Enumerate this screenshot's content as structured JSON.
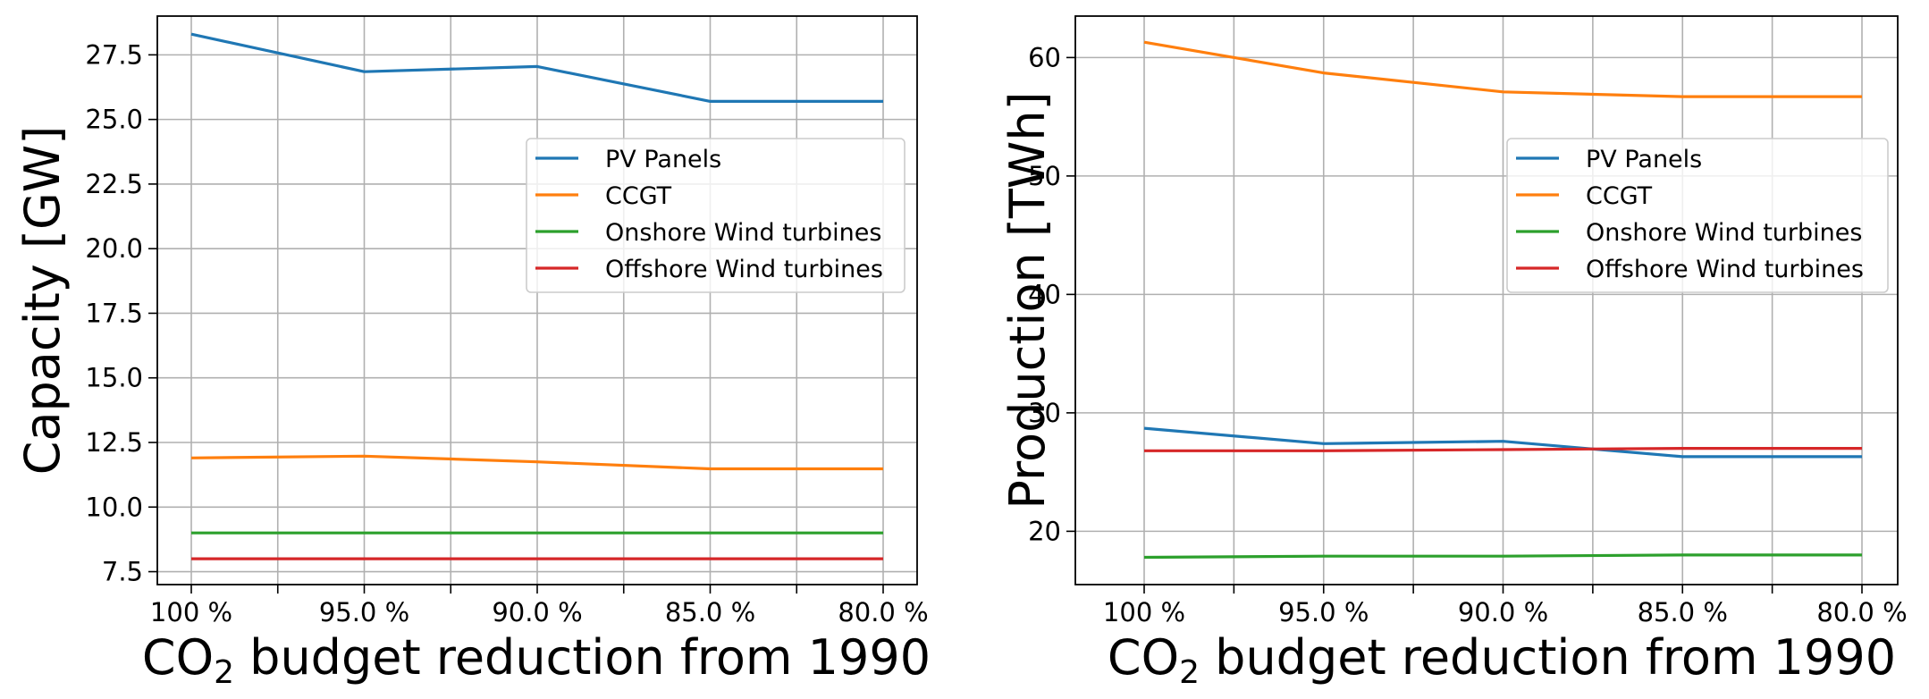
{
  "chart_data": [
    {
      "type": "line",
      "ylabel": "Capacity [GW]",
      "xlabel_main": "CO",
      "xlabel_sub": "2",
      "xlabel_rest": " budget reduction from 1990",
      "categories": [
        "100 %",
        "95.0 %",
        "90.0 %",
        "85.0 %",
        "80.0 %"
      ],
      "ylim": [
        7.0,
        29.0
      ],
      "yticks": [
        7.5,
        10.0,
        12.5,
        15.0,
        17.5,
        20.0,
        22.5,
        25.0,
        27.5
      ],
      "ytick_labels": [
        "7.5",
        "10.0",
        "12.5",
        "15.0",
        "17.5",
        "20.0",
        "22.5",
        "25.0",
        "27.5"
      ],
      "grid": true,
      "legend_position": "center-right",
      "series": [
        {
          "name": "PV Panels",
          "color": "#1f77b4",
          "values": [
            28.3,
            26.85,
            27.05,
            25.7,
            25.7
          ]
        },
        {
          "name": "CCGT",
          "color": "#ff7f0e",
          "values": [
            11.9,
            11.97,
            11.75,
            11.48,
            11.48
          ]
        },
        {
          "name": "Onshore Wind turbines",
          "color": "#2ca02c",
          "values": [
            9.0,
            9.0,
            9.0,
            9.0,
            9.0
          ]
        },
        {
          "name": "Offshore Wind turbines",
          "color": "#d62728",
          "values": [
            8.0,
            8.0,
            8.0,
            8.0,
            8.0
          ]
        }
      ]
    },
    {
      "type": "line",
      "ylabel": "Production [TWh]",
      "xlabel_main": "CO",
      "xlabel_sub": "2",
      "xlabel_rest": " budget reduction from 1990",
      "categories": [
        "100 %",
        "95.0 %",
        "90.0 %",
        "85.0 %",
        "80.0 %"
      ],
      "ylim": [
        15.5,
        63.5
      ],
      "yticks": [
        20,
        30,
        40,
        50,
        60
      ],
      "ytick_labels": [
        "20",
        "30",
        "40",
        "50",
        "60"
      ],
      "grid": true,
      "legend_position": "center-right",
      "series": [
        {
          "name": "PV Panels",
          "color": "#1f77b4",
          "values": [
            28.7,
            27.4,
            27.6,
            26.3,
            26.3
          ]
        },
        {
          "name": "CCGT",
          "color": "#ff7f0e",
          "values": [
            61.3,
            58.7,
            57.1,
            56.7,
            56.7
          ]
        },
        {
          "name": "Onshore Wind turbines",
          "color": "#2ca02c",
          "values": [
            17.8,
            17.9,
            17.9,
            18.0,
            18.0
          ]
        },
        {
          "name": "Offshore Wind turbines",
          "color": "#d62728",
          "values": [
            26.8,
            26.8,
            26.9,
            27.0,
            27.0
          ]
        }
      ]
    }
  ]
}
